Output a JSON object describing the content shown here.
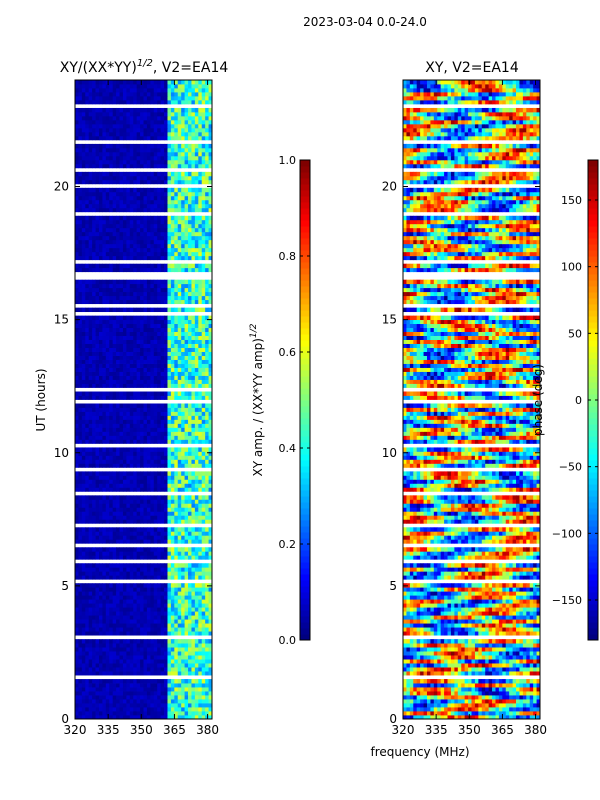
{
  "figure": {
    "suptitle": "2023-03-04 0.0-24.0",
    "xlabel": "frequency (MHz)"
  },
  "chart_data": [
    {
      "type": "heatmap",
      "title_main": "XY/(XX*YY)",
      "title_sup": "1/2",
      "title_rest": ", V2=EA14",
      "xlabel": "",
      "ylabel": "UT (hours)",
      "xlim": [
        320,
        382
      ],
      "ylim": [
        0,
        24
      ],
      "xticks": [
        320,
        335,
        350,
        365,
        380
      ],
      "yticks": [
        0,
        5,
        10,
        15,
        20
      ],
      "colorbar": {
        "label_main": "XY amp. / (XX*YY amp)",
        "label_sup": "1/2",
        "range": [
          0.0,
          1.0
        ],
        "ticks": [
          "0.0",
          "0.2",
          "0.4",
          "0.6",
          "0.8",
          "1.0"
        ],
        "colormap": "jet"
      },
      "description": "amplitude mostly low (~0.05) below 360 MHz, elevated (0.3-0.6) in 362-380 MHz band"
    },
    {
      "type": "heatmap",
      "title_main": "XY, V2=EA14",
      "title_sup": "",
      "title_rest": "",
      "xlabel": "",
      "ylabel": "",
      "xlim": [
        320,
        382
      ],
      "ylim": [
        0,
        24
      ],
      "xticks": [
        320,
        335,
        350,
        365,
        380
      ],
      "yticks": [
        0,
        5,
        10,
        15,
        20
      ],
      "colorbar": {
        "label_main": "phase (deg)",
        "label_sup": "",
        "range": [
          -180,
          180
        ],
        "ticks": [
          "−150",
          "−100",
          "−50",
          "0",
          "50",
          "100",
          "150"
        ],
        "tick_values": [
          -150,
          -100,
          -50,
          0,
          50,
          100,
          150
        ],
        "colormap": "jet"
      },
      "description": "phase varies widely between -180 and 180 deg across all frequencies and times"
    }
  ],
  "flagged_rows_hours": [
    [
      1.45,
      1.6
    ],
    [
      2.65,
      2.75
    ],
    [
      3.05,
      3.2
    ],
    [
      5.1,
      5.3
    ],
    [
      5.9,
      6.0
    ],
    [
      6.5,
      6.6
    ],
    [
      7.2,
      7.35
    ],
    [
      7.6,
      7.7
    ],
    [
      8.4,
      8.5
    ],
    [
      9.35,
      9.45
    ],
    [
      10.2,
      10.35
    ],
    [
      11.9,
      12.0
    ],
    [
      12.25,
      12.45
    ],
    [
      12.55,
      12.65
    ],
    [
      13.9,
      14.0
    ],
    [
      15.2,
      15.35
    ],
    [
      15.5,
      15.6
    ],
    [
      16.45,
      16.75
    ],
    [
      17.1,
      17.2
    ],
    [
      18.25,
      18.35
    ],
    [
      18.9,
      19.0
    ],
    [
      19.95,
      20.05
    ],
    [
      20.6,
      20.7
    ],
    [
      21.55,
      21.75
    ],
    [
      21.85,
      21.95
    ],
    [
      22.45,
      22.55
    ],
    [
      22.95,
      23.05
    ],
    [
      23.5,
      23.6
    ]
  ]
}
